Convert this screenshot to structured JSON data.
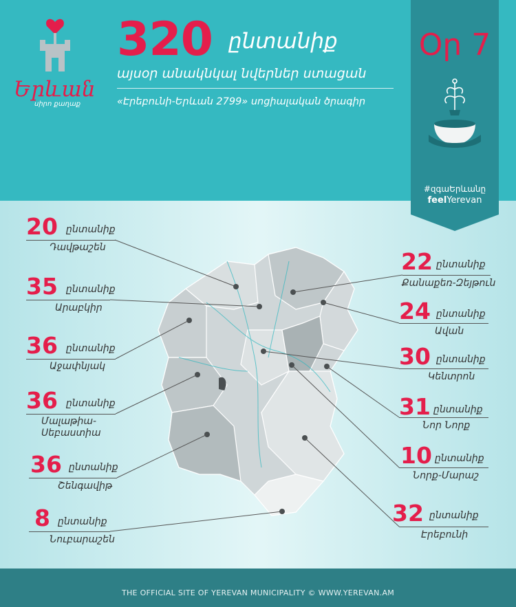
{
  "logo": {
    "word": "Երևան",
    "sub": "սիրո քաղաք"
  },
  "header": {
    "total": "320",
    "total_unit": "ընտանիք",
    "subtitle": "այսօր անակնկալ նվերներ ստացան",
    "program": "«Էրեբունի-Երևան 2799» սոցիալական ծրագիր"
  },
  "panel": {
    "day": "Օր 7",
    "hashtag": "#զգաԵրևանը",
    "feel_bold": "feel",
    "feel_rest": "Yerevan"
  },
  "districts_left": [
    {
      "count": "20",
      "unit": "ընտանիք",
      "name": "Դավթաշեն"
    },
    {
      "count": "35",
      "unit": "ընտանիք",
      "name": "Արաբկիր"
    },
    {
      "count": "36",
      "unit": "ընտանիք",
      "name": "Աջափնյակ"
    },
    {
      "count": "36",
      "unit": "ընտանիք",
      "name": "Մալաթիա-Սեբաստիա"
    },
    {
      "count": "36",
      "unit": "ընտանիք",
      "name": "Շենգավիթ"
    },
    {
      "count": "8",
      "unit": "ընտանիք",
      "name": "Նուբարաշեն"
    }
  ],
  "districts_right": [
    {
      "count": "22",
      "unit": "ընտանիք",
      "name": "Քանաքեռ-Զեյթուն"
    },
    {
      "count": "24",
      "unit": "ընտանիք",
      "name": "Ավան"
    },
    {
      "count": "30",
      "unit": "ընտանիք",
      "name": "Կենտրոն"
    },
    {
      "count": "31",
      "unit": "ընտանիք",
      "name": "Նոր Նորք"
    },
    {
      "count": "10",
      "unit": "ընտանիք",
      "name": "Նորք-Մարաշ"
    },
    {
      "count": "32",
      "unit": "ընտանիք",
      "name": "Էրեբունի"
    }
  ],
  "footer": {
    "left": "THE OFFICIAL SITE OF YEREVAN MUNICIPALITY",
    "right": "WWW.YEREVAN.AM"
  },
  "colors": {
    "accent": "#e41e4b",
    "teal": "#35b9c1",
    "dark_teal": "#2a8e97"
  }
}
